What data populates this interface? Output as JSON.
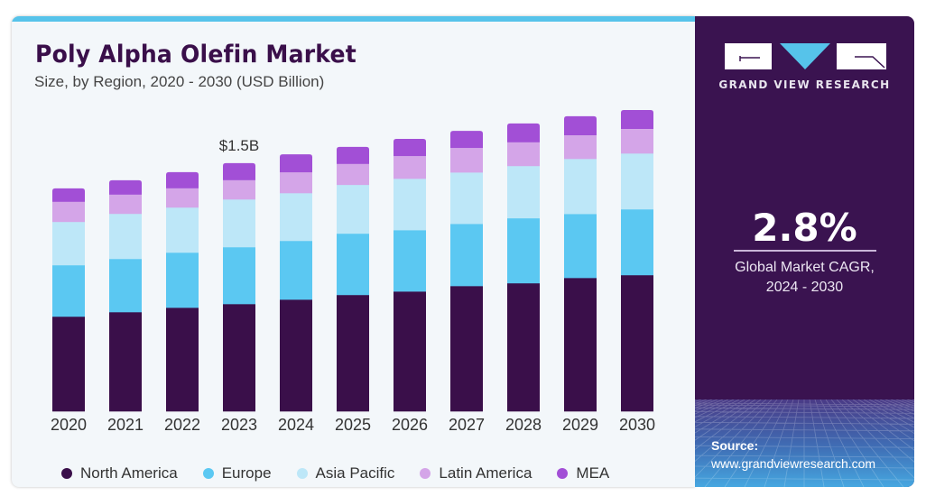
{
  "header": {
    "title": "Poly Alpha Olefin Market",
    "subtitle": "Size, by Region, 2020 - 2030 (USD Billion)"
  },
  "panel": {
    "brand": "GRAND VIEW RESEARCH",
    "cagr_value": "2.8%",
    "cagr_label_line1": "Global Market CAGR,",
    "cagr_label_line2": "2024 - 2030",
    "source_label": "Source:",
    "source_url": "www.grandviewresearch.com"
  },
  "colors": {
    "North America": "#3a0f4a",
    "Europe": "#5bc8f2",
    "Asia Pacific": "#bde7f8",
    "Latin America": "#d4a5e8",
    "MEA": "#a24fd6",
    "accent": "#56c3ea",
    "panel": "#3a1350"
  },
  "chart_data": {
    "type": "bar",
    "stacked": true,
    "title": "Poly Alpha Olefin Market",
    "subtitle": "Size, by Region, 2020 - 2030 (USD Billion)",
    "xlabel": "",
    "ylabel": "USD Billion",
    "ylim": [
      0,
      1.9
    ],
    "grid": false,
    "legend_position": "bottom",
    "categories": [
      "2020",
      "2021",
      "2022",
      "2023",
      "2024",
      "2025",
      "2026",
      "2027",
      "2028",
      "2029",
      "2030"
    ],
    "series": [
      {
        "name": "North America",
        "values": [
          0.573,
          0.6,
          0.627,
          0.649,
          0.676,
          0.704,
          0.725,
          0.758,
          0.775,
          0.807,
          0.824
        ]
      },
      {
        "name": "Europe",
        "values": [
          0.311,
          0.322,
          0.333,
          0.344,
          0.355,
          0.371,
          0.371,
          0.376,
          0.393,
          0.387,
          0.398
        ]
      },
      {
        "name": "Asia Pacific",
        "values": [
          0.262,
          0.273,
          0.273,
          0.289,
          0.289,
          0.295,
          0.311,
          0.311,
          0.316,
          0.333,
          0.338
        ]
      },
      {
        "name": "Latin America",
        "values": [
          0.12,
          0.115,
          0.115,
          0.115,
          0.125,
          0.125,
          0.136,
          0.147,
          0.142,
          0.142,
          0.147
        ]
      },
      {
        "name": "MEA",
        "values": [
          0.082,
          0.087,
          0.098,
          0.104,
          0.109,
          0.104,
          0.104,
          0.104,
          0.115,
          0.115,
          0.115
        ]
      }
    ],
    "annotations": [
      {
        "category": "2023",
        "text": "$1.5B",
        "value": 1.5
      }
    ]
  }
}
